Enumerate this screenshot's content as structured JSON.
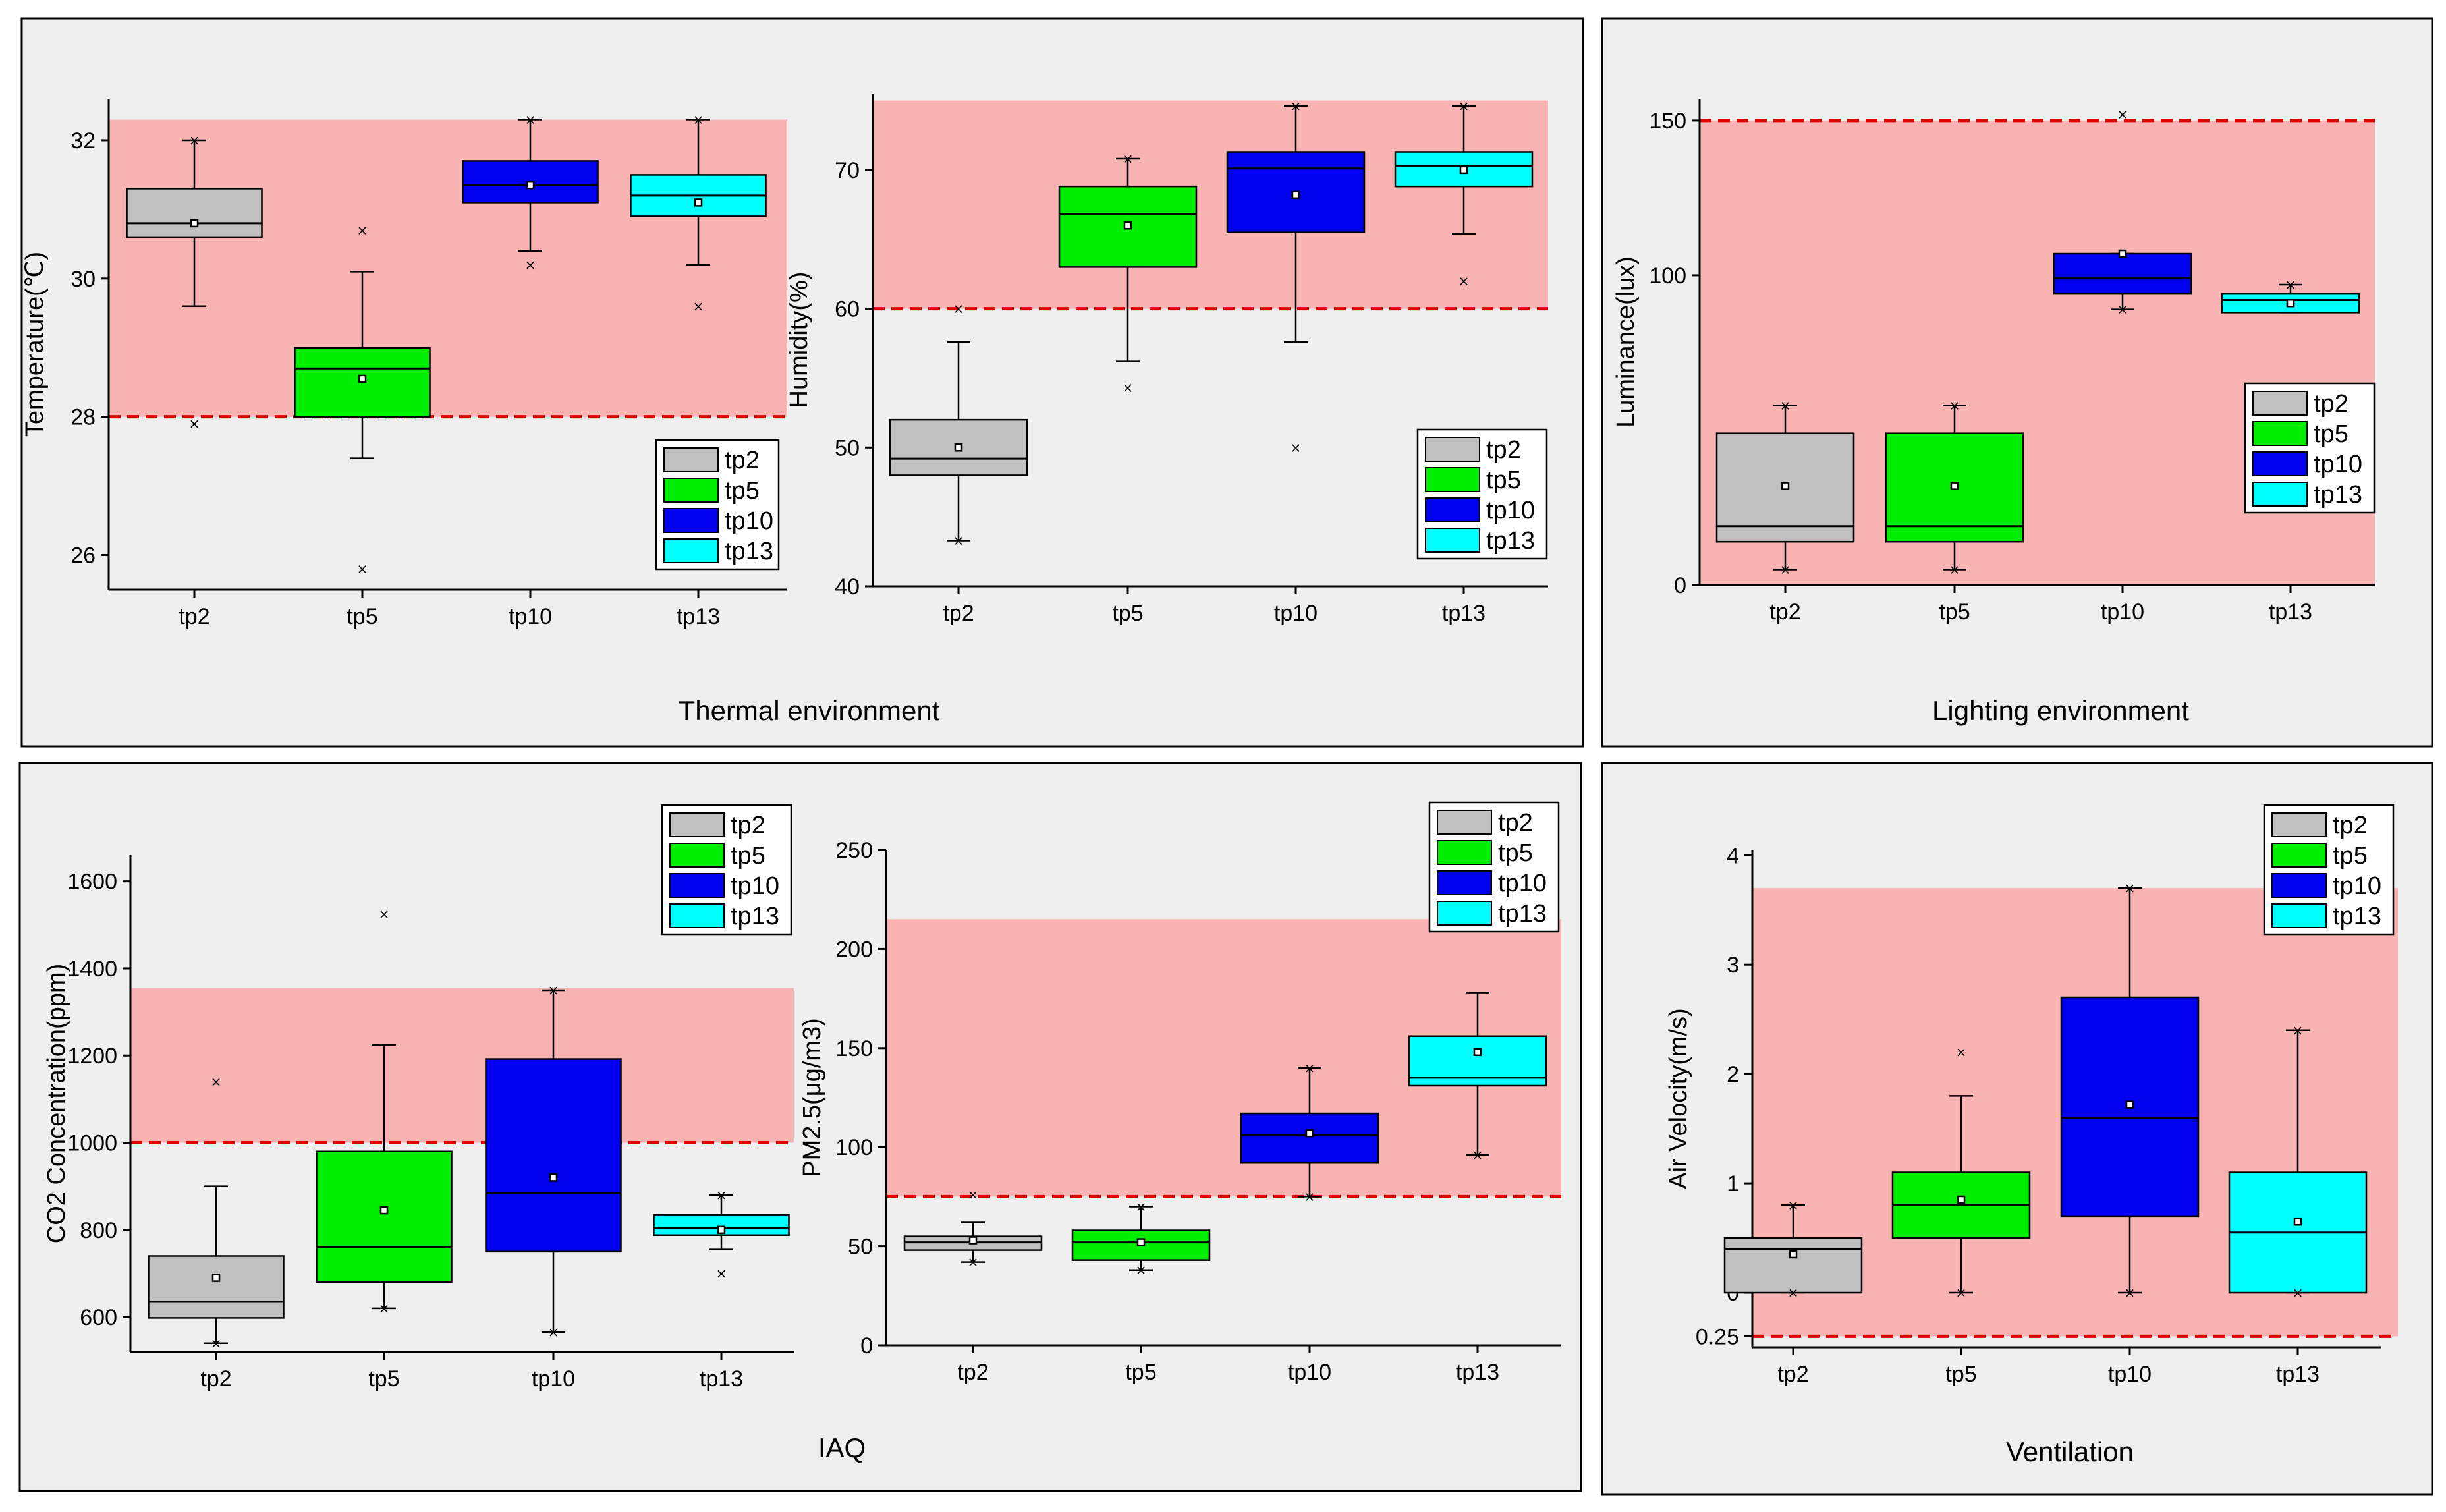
{
  "colors": {
    "tp2": "#c0c0c0",
    "tp5": "#00ee00",
    "tp10": "#0000ee",
    "tp13": "#00ffff",
    "zone": "#f9b3b3",
    "threshold": "#e00000",
    "panel": "#efefef"
  },
  "groups": [
    {
      "caption": "Thermal environment"
    },
    {
      "caption": "Lighting environment"
    },
    {
      "caption": "IAQ"
    },
    {
      "caption": "Ventilation"
    }
  ],
  "chart_data": [
    {
      "type": "box",
      "ylabel": "Temperature(℃)",
      "ylim": [
        25.5,
        32.6
      ],
      "yticks": [
        26,
        28,
        30,
        32
      ],
      "categories": [
        "tp2",
        "tp5",
        "tp10",
        "tp13"
      ],
      "legend": [
        "tp2",
        "tp5",
        "tp10",
        "tp13"
      ],
      "legend_position": "bottom-right",
      "comfort_zone": [
        28,
        32.3
      ],
      "threshold": 28,
      "boxes": [
        {
          "min": 29.6,
          "q1": 30.6,
          "median": 30.8,
          "q3": 31.3,
          "max": 32.0,
          "mean": 30.8,
          "outliers": [
            27.9,
            32.0
          ]
        },
        {
          "min": 27.4,
          "q1": 28.0,
          "median": 28.7,
          "q3": 29.0,
          "max": 30.1,
          "mean": 28.55,
          "outliers": [
            25.8,
            30.7
          ]
        },
        {
          "min": 30.4,
          "q1": 31.1,
          "median": 31.35,
          "q3": 31.7,
          "max": 32.3,
          "mean": 31.35,
          "outliers": [
            30.2,
            32.3
          ]
        },
        {
          "min": 30.2,
          "q1": 30.9,
          "median": 31.2,
          "q3": 31.5,
          "max": 32.3,
          "mean": 31.1,
          "outliers": [
            29.6,
            32.3
          ]
        }
      ]
    },
    {
      "type": "box",
      "ylabel": "Humidity(%)",
      "ylim": [
        40,
        75.5
      ],
      "yticks": [
        40,
        50,
        60,
        70
      ],
      "categories": [
        "tp2",
        "tp5",
        "tp10",
        "tp13"
      ],
      "legend": [
        "tp2",
        "tp5",
        "tp10",
        "tp13"
      ],
      "legend_position": "bottom-right",
      "comfort_zone": [
        60,
        75
      ],
      "threshold": 60,
      "boxes": [
        {
          "min": 43.3,
          "q1": 48.0,
          "median": 49.2,
          "q3": 52.0,
          "max": 57.6,
          "mean": 50.0,
          "outliers": [
            43.3,
            60.0
          ]
        },
        {
          "min": 56.2,
          "q1": 63.0,
          "median": 66.8,
          "q3": 68.8,
          "max": 70.8,
          "mean": 66.0,
          "outliers": [
            54.3,
            70.8
          ]
        },
        {
          "min": 57.6,
          "q1": 65.5,
          "median": 70.1,
          "q3": 71.3,
          "max": 74.6,
          "mean": 68.2,
          "outliers": [
            50.0,
            74.6
          ]
        },
        {
          "min": 65.4,
          "q1": 68.8,
          "median": 70.3,
          "q3": 71.3,
          "max": 74.6,
          "mean": 70.0,
          "outliers": [
            62.0,
            74.6
          ]
        }
      ]
    },
    {
      "type": "box",
      "ylabel": "Luminance(lux)",
      "ylim": [
        0,
        157
      ],
      "yticks": [
        0,
        100,
        150
      ],
      "categories": [
        "tp2",
        "tp5",
        "tp10",
        "tp13"
      ],
      "legend": [
        "tp2",
        "tp5",
        "tp10",
        "tp13"
      ],
      "legend_position": "middle-right",
      "comfort_zone": [
        0,
        150
      ],
      "threshold": 150,
      "boxes": [
        {
          "min": 5,
          "q1": 14,
          "median": 19,
          "q3": 49,
          "max": 58,
          "mean": 32,
          "outliers": [
            5,
            58
          ]
        },
        {
          "min": 5,
          "q1": 14,
          "median": 19,
          "q3": 49,
          "max": 58,
          "mean": 32,
          "outliers": [
            5,
            58
          ]
        },
        {
          "min": 89,
          "q1": 94,
          "median": 99,
          "q3": 107,
          "max": 107,
          "mean": 107,
          "outliers": [
            89,
            152
          ]
        },
        {
          "min": 88,
          "q1": 88,
          "median": 92,
          "q3": 94,
          "max": 97,
          "mean": 91,
          "outliers": [
            97
          ]
        }
      ]
    },
    {
      "type": "box",
      "ylabel": "CO2 Concentration(ppm)",
      "ylim": [
        520,
        1660
      ],
      "yticks": [
        600,
        800,
        1000,
        1200,
        1400,
        1600
      ],
      "categories": [
        "tp2",
        "tp5",
        "tp10",
        "tp13"
      ],
      "legend": [
        "tp2",
        "tp5",
        "tp10",
        "tp13"
      ],
      "legend_position": "top-right",
      "comfort_zone": [
        1000,
        1355
      ],
      "threshold": 1000,
      "boxes": [
        {
          "min": 540,
          "q1": 598,
          "median": 635,
          "q3": 740,
          "max": 900,
          "mean": 690,
          "outliers": [
            540,
            1140
          ]
        },
        {
          "min": 620,
          "q1": 680,
          "median": 760,
          "q3": 980,
          "max": 1225,
          "mean": 845,
          "outliers": [
            1525,
            620
          ]
        },
        {
          "min": 565,
          "q1": 750,
          "median": 885,
          "q3": 1192,
          "max": 1350,
          "mean": 920,
          "outliers": [
            565,
            1350
          ]
        },
        {
          "min": 755,
          "q1": 788,
          "median": 805,
          "q3": 835,
          "max": 880,
          "mean": 800,
          "outliers": [
            700,
            880
          ]
        }
      ]
    },
    {
      "type": "box",
      "ylabel": "PM2.5(μg/m3)",
      "ylim": [
        0,
        250
      ],
      "yticks": [
        0,
        50,
        100,
        150,
        200,
        250
      ],
      "categories": [
        "tp2",
        "tp5",
        "tp10",
        "tp13"
      ],
      "legend": [
        "tp2",
        "tp5",
        "tp10",
        "tp13"
      ],
      "legend_position": "top-right",
      "comfort_zone": [
        75,
        215
      ],
      "threshold": 75,
      "boxes": [
        {
          "min": 42,
          "q1": 48,
          "median": 52,
          "q3": 55,
          "max": 62,
          "mean": 53,
          "outliers": [
            42,
            76
          ]
        },
        {
          "min": 38,
          "q1": 43,
          "median": 52,
          "q3": 58,
          "max": 70,
          "mean": 52,
          "outliers": [
            38,
            70
          ]
        },
        {
          "min": 75,
          "q1": 92,
          "median": 106,
          "q3": 117,
          "max": 140,
          "mean": 107,
          "outliers": [
            75,
            140
          ]
        },
        {
          "min": 96,
          "q1": 131,
          "median": 135,
          "q3": 156,
          "max": 178,
          "mean": 148,
          "outliers": [
            96
          ]
        }
      ]
    },
    {
      "type": "box",
      "ylabel": "Air Velocity(m/s)",
      "ylim": [
        -0.5,
        4.05
      ],
      "yticks": [
        0,
        1,
        2,
        3,
        4
      ],
      "extra_tick": {
        "value": -0.4,
        "label": "0.25"
      },
      "categories": [
        "tp2",
        "tp5",
        "tp10",
        "tp13"
      ],
      "legend": [
        "tp2",
        "tp5",
        "tp10",
        "tp13"
      ],
      "legend_position": "top-right",
      "comfort_zone": [
        -0.4,
        3.7
      ],
      "threshold": -0.4,
      "boxes": [
        {
          "min": 0.0,
          "q1": 0.0,
          "median": 0.4,
          "q3": 0.5,
          "max": 0.8,
          "mean": 0.35,
          "outliers": [
            0.0,
            0.8
          ]
        },
        {
          "min": 0.0,
          "q1": 0.5,
          "median": 0.8,
          "q3": 1.1,
          "max": 1.8,
          "mean": 0.85,
          "outliers": [
            2.2,
            0.0
          ]
        },
        {
          "min": 0.0,
          "q1": 0.7,
          "median": 1.6,
          "q3": 2.7,
          "max": 3.7,
          "mean": 1.72,
          "outliers": [
            0.0,
            3.7
          ]
        },
        {
          "min": 0.0,
          "q1": 0.0,
          "median": 0.55,
          "q3": 1.1,
          "max": 2.4,
          "mean": 0.65,
          "outliers": [
            0.0,
            2.4
          ]
        }
      ]
    }
  ]
}
